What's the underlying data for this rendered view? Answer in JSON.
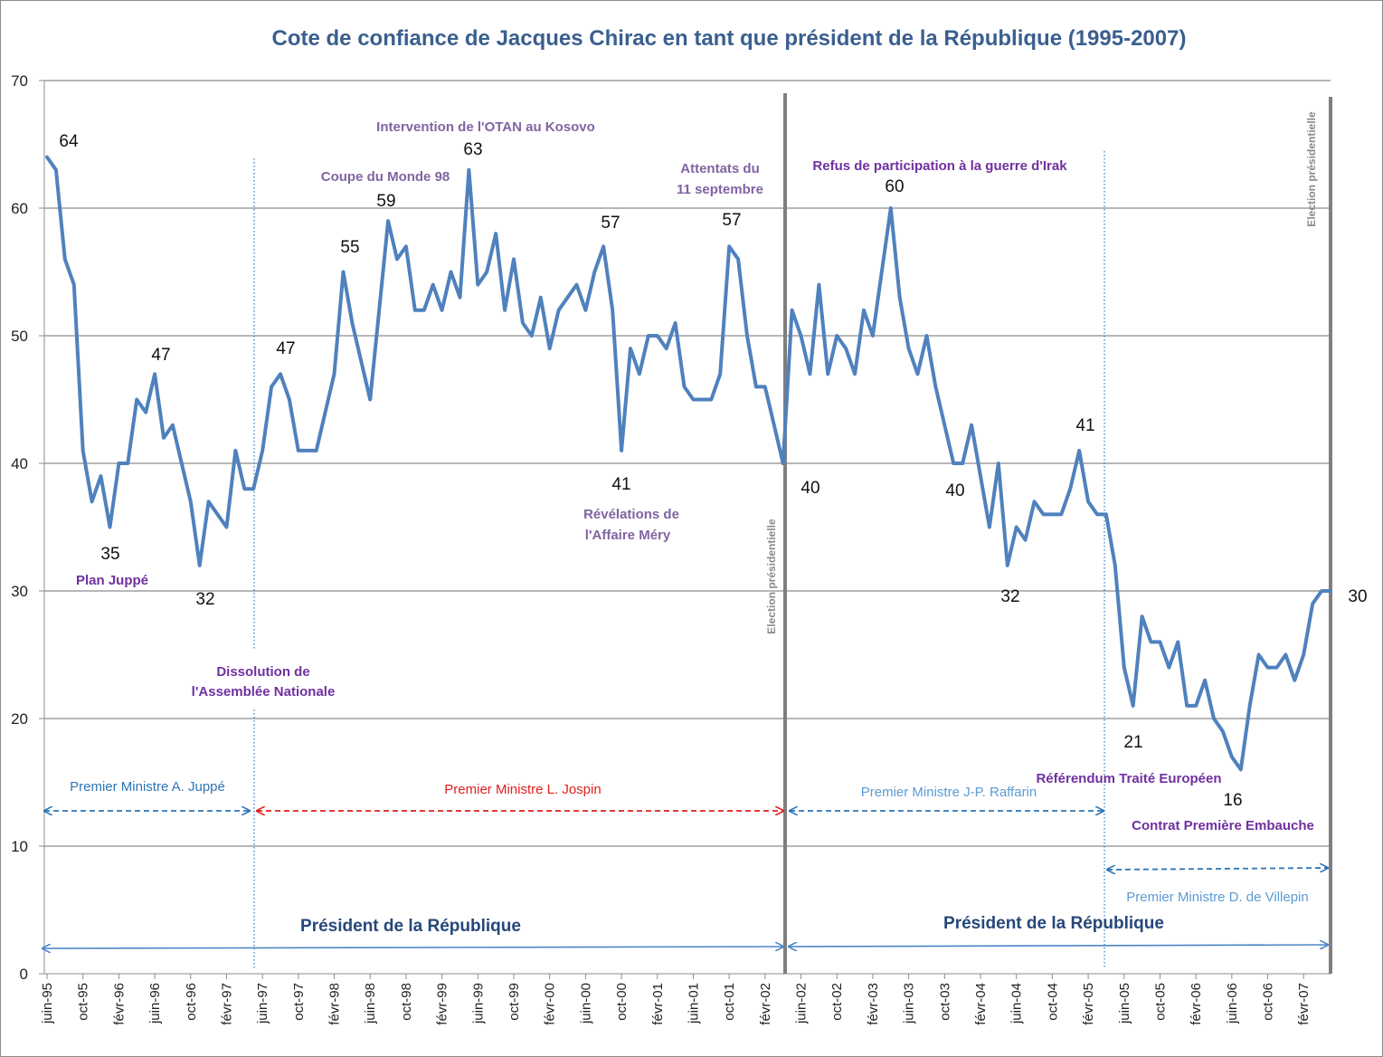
{
  "chart_data": {
    "type": "line",
    "title": "Cote de confiance de Jacques Chirac en tant que président de la République (1995-2007)",
    "ylim": [
      0,
      70
    ],
    "yticks": [
      0,
      10,
      20,
      30,
      40,
      50,
      60,
      70
    ],
    "grid": true,
    "line_color": "#4f81bd",
    "x_tick_labels": [
      "juin-95",
      "oct-95",
      "févr-96",
      "juin-96",
      "oct-96",
      "févr-97",
      "juin-97",
      "oct-97",
      "févr-98",
      "juin-98",
      "oct-98",
      "févr-99",
      "juin-99",
      "oct-99",
      "févr-00",
      "juin-00",
      "oct-00",
      "févr-01",
      "juin-01",
      "oct-01",
      "févr-02",
      "juin-02",
      "oct-02",
      "févr-03",
      "juin-03",
      "oct-03",
      "févr-04",
      "juin-04",
      "oct-04",
      "févr-05",
      "juin-05",
      "oct-05",
      "févr-06",
      "juin-06",
      "oct-06",
      "févr-07"
    ],
    "series": [
      {
        "start_month": "juin-95",
        "step": "monthly",
        "values": [
          64,
          63,
          56,
          54,
          41,
          37,
          39,
          35,
          40,
          40,
          45,
          44,
          47,
          42,
          43,
          40,
          37,
          32,
          37,
          36,
          35,
          41,
          38,
          38,
          41,
          46,
          47,
          45,
          41,
          41,
          41,
          44,
          47,
          55,
          51,
          48,
          45,
          52,
          59,
          56,
          57,
          52,
          52,
          54,
          52,
          55,
          53,
          63,
          54,
          55,
          58,
          52,
          56,
          51,
          50,
          53,
          49,
          52,
          53,
          54,
          52,
          55,
          57,
          52,
          41,
          49,
          47,
          50,
          50,
          49,
          51,
          46,
          45,
          45,
          45,
          47,
          57,
          56,
          50,
          46,
          46,
          43,
          40,
          52,
          50,
          47,
          54,
          47,
          50,
          49,
          47,
          52,
          50,
          55,
          60,
          53,
          49,
          47,
          50,
          46,
          43,
          40,
          40,
          43,
          39,
          35,
          40,
          32,
          35,
          34,
          37,
          36,
          36,
          36,
          38,
          41,
          37,
          36,
          36,
          32,
          24,
          21,
          28,
          26,
          26,
          24,
          26,
          21,
          21,
          23,
          20,
          19,
          17,
          16,
          21,
          25,
          24,
          24,
          25,
          23,
          25,
          29,
          30,
          30
        ]
      }
    ],
    "value_labels": [
      {
        "text": "64"
      },
      {
        "text": "35"
      },
      {
        "text": "47",
        "id": "a"
      },
      {
        "text": "32",
        "id": "a"
      },
      {
        "text": "47",
        "id": "b"
      },
      {
        "text": "55"
      },
      {
        "text": "59"
      },
      {
        "text": "63"
      },
      {
        "text": "57",
        "id": "a"
      },
      {
        "text": "41",
        "id": "a"
      },
      {
        "text": "57",
        "id": "b"
      },
      {
        "text": "40",
        "id": "a"
      },
      {
        "text": "60"
      },
      {
        "text": "40",
        "id": "b"
      },
      {
        "text": "32",
        "id": "b"
      },
      {
        "text": "41",
        "id": "b"
      },
      {
        "text": "21"
      },
      {
        "text": "16"
      },
      {
        "text": "30"
      }
    ],
    "events": {
      "plan_juppe": "Plan Juppé",
      "dissolution_1": "Dissolution de",
      "dissolution_2": "l'Assemblée Nationale",
      "coupe_monde": "Coupe du Monde 98",
      "otan": "Intervention de l'OTAN au Kosovo",
      "attentats_1": "Attentats du",
      "attentats_2": "11 septembre",
      "mery_1": "Révélations de",
      "mery_2": "l'Affaire Méry",
      "irak": "Refus de participation à la guerre d'Irak",
      "referendum": "Référendum Traité Européen",
      "cpe": "Contrat Première Embauche"
    },
    "election_label": "Election présidentielle",
    "prime_ministers": [
      {
        "label": "Premier Ministre A. Juppé",
        "color": "#2e75b6"
      },
      {
        "label": "Premier Ministre L. Jospin",
        "color": "#e0201b"
      },
      {
        "label": "Premier Ministre J-P. Raffarin",
        "color": "#5b9bd5"
      },
      {
        "label": "Premier Ministre D. de Villepin",
        "color": "#5b9bd5"
      }
    ],
    "president_label": "Président de la République",
    "colors": {
      "event_purple": "#7030a0",
      "event_violet": "#8064a2",
      "grid": "#8c8c8c",
      "title": "#3a5f8f",
      "arrow_blue": "#2e75b6",
      "arrow_red": "#e0201b"
    }
  }
}
